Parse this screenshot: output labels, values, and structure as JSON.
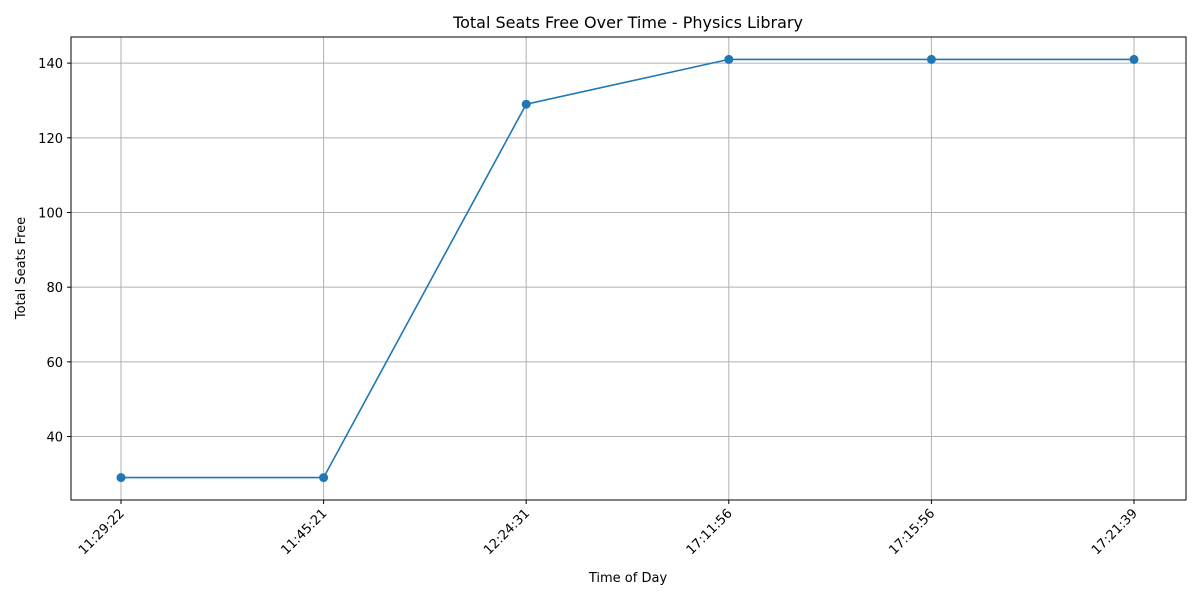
{
  "chart_data": {
    "type": "line",
    "title": "Total Seats Free Over Time - Physics Library",
    "xlabel": "Time of Day",
    "ylabel": "Total Seats Free",
    "categories": [
      "11:29:22",
      "11:45:21",
      "12:24:31",
      "17:11:56",
      "17:15:56",
      "17:21:39"
    ],
    "series": [
      {
        "values": [
          29,
          29,
          129,
          141,
          141,
          141
        ],
        "color": "#1f77b4",
        "marker": "circle"
      }
    ],
    "ylim": [
      23,
      147
    ],
    "yticks": [
      40,
      60,
      80,
      100,
      120,
      140
    ],
    "grid": true,
    "x_tick_rotation": 45
  }
}
